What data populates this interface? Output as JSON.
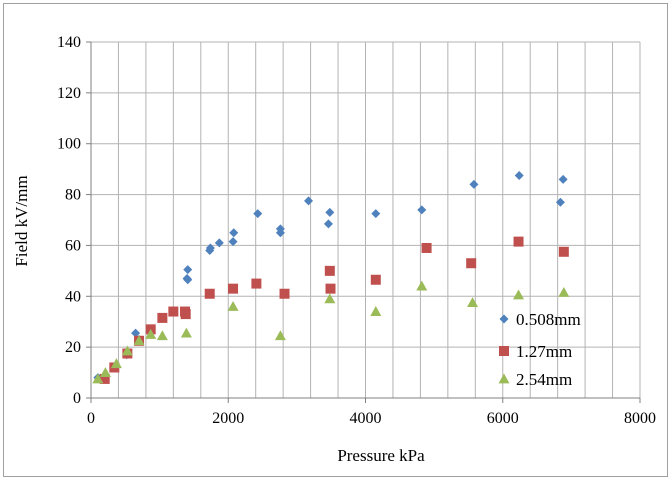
{
  "chart_data": {
    "type": "scatter",
    "xlabel": "Pressure kPa",
    "ylabel": "Field kV/mm",
    "xlim": [
      0,
      8000
    ],
    "ylim": [
      0,
      140
    ],
    "x_ticks": [
      0,
      2000,
      4000,
      6000,
      8000
    ],
    "y_ticks": [
      0,
      20,
      40,
      60,
      80,
      100,
      120,
      140
    ],
    "grid": true,
    "legend_position": "right-bottom",
    "series": [
      {
        "name": "0.508mm",
        "color": "#4f81bd",
        "marker": "diamond",
        "points": [
          [
            100,
            8
          ],
          [
            210,
            9
          ],
          [
            350,
            12
          ],
          [
            520,
            17
          ],
          [
            650,
            25.5
          ],
          [
            700,
            23
          ],
          [
            860,
            26
          ],
          [
            1400,
            47
          ],
          [
            1410,
            46.5
          ],
          [
            1410,
            50.5
          ],
          [
            1730,
            58
          ],
          [
            1740,
            59
          ],
          [
            1870,
            61
          ],
          [
            2070,
            61.5
          ],
          [
            2080,
            65
          ],
          [
            2430,
            72.5
          ],
          [
            2760,
            65
          ],
          [
            2760,
            66.5
          ],
          [
            3170,
            77.5
          ],
          [
            3460,
            68.5
          ],
          [
            3480,
            73
          ],
          [
            4150,
            72.5
          ],
          [
            4820,
            74
          ],
          [
            5580,
            84
          ],
          [
            6240,
            87.5
          ],
          [
            6840,
            77
          ],
          [
            6880,
            86
          ]
        ]
      },
      {
        "name": "1.27mm",
        "color": "#c0504d",
        "marker": "square",
        "points": [
          [
            200,
            7.5
          ],
          [
            340,
            12
          ],
          [
            530,
            17.5
          ],
          [
            700,
            22.5
          ],
          [
            870,
            27
          ],
          [
            1040,
            31.5
          ],
          [
            1200,
            34
          ],
          [
            1370,
            34
          ],
          [
            1380,
            33
          ],
          [
            1730,
            41
          ],
          [
            2070,
            43
          ],
          [
            2410,
            45
          ],
          [
            2820,
            41
          ],
          [
            3480,
            50
          ],
          [
            3490,
            43
          ],
          [
            4150,
            46.5
          ],
          [
            4890,
            59
          ],
          [
            5540,
            53
          ],
          [
            6230,
            61.5
          ],
          [
            6890,
            57.5
          ]
        ]
      },
      {
        "name": "2.54mm",
        "color": "#9bbb59",
        "marker": "triangle",
        "points": [
          [
            100,
            7.5
          ],
          [
            210,
            10
          ],
          [
            370,
            13.5
          ],
          [
            530,
            18.5
          ],
          [
            700,
            22.5
          ],
          [
            870,
            25
          ],
          [
            1040,
            24.5
          ],
          [
            1390,
            25.5
          ],
          [
            2070,
            36
          ],
          [
            2760,
            24.5
          ],
          [
            3480,
            39
          ],
          [
            4150,
            34
          ],
          [
            4820,
            44
          ],
          [
            5560,
            37.5
          ],
          [
            6230,
            40.5
          ],
          [
            6890,
            41.5
          ]
        ]
      }
    ]
  }
}
